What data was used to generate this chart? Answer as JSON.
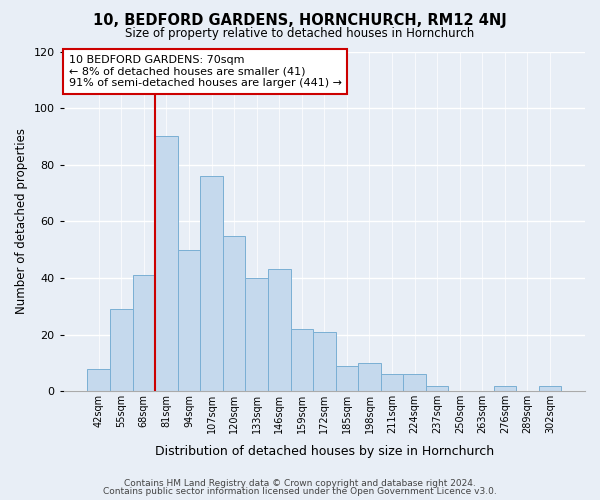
{
  "title": "10, BEDFORD GARDENS, HORNCHURCH, RM12 4NJ",
  "subtitle": "Size of property relative to detached houses in Hornchurch",
  "xlabel": "Distribution of detached houses by size in Hornchurch",
  "ylabel": "Number of detached properties",
  "footer_line1": "Contains HM Land Registry data © Crown copyright and database right 2024.",
  "footer_line2": "Contains public sector information licensed under the Open Government Licence v3.0.",
  "bin_labels": [
    "42sqm",
    "55sqm",
    "68sqm",
    "81sqm",
    "94sqm",
    "107sqm",
    "120sqm",
    "133sqm",
    "146sqm",
    "159sqm",
    "172sqm",
    "185sqm",
    "198sqm",
    "211sqm",
    "224sqm",
    "237sqm",
    "250sqm",
    "263sqm",
    "276sqm",
    "289sqm",
    "302sqm"
  ],
  "bar_heights": [
    8,
    29,
    41,
    90,
    50,
    76,
    55,
    40,
    43,
    22,
    21,
    9,
    10,
    6,
    6,
    2,
    0,
    0,
    2,
    0,
    2
  ],
  "bar_color": "#c5d9ed",
  "bar_edge_color": "#7aafd4",
  "highlight_color": "#cc0000",
  "highlight_idx": 2,
  "ylim": [
    0,
    120
  ],
  "yticks": [
    0,
    20,
    40,
    60,
    80,
    100,
    120
  ],
  "annotation_title": "10 BEDFORD GARDENS: 70sqm",
  "annotation_line1": "← 8% of detached houses are smaller (41)",
  "annotation_line2": "91% of semi-detached houses are larger (441) →",
  "background_color": "#e8eef6"
}
